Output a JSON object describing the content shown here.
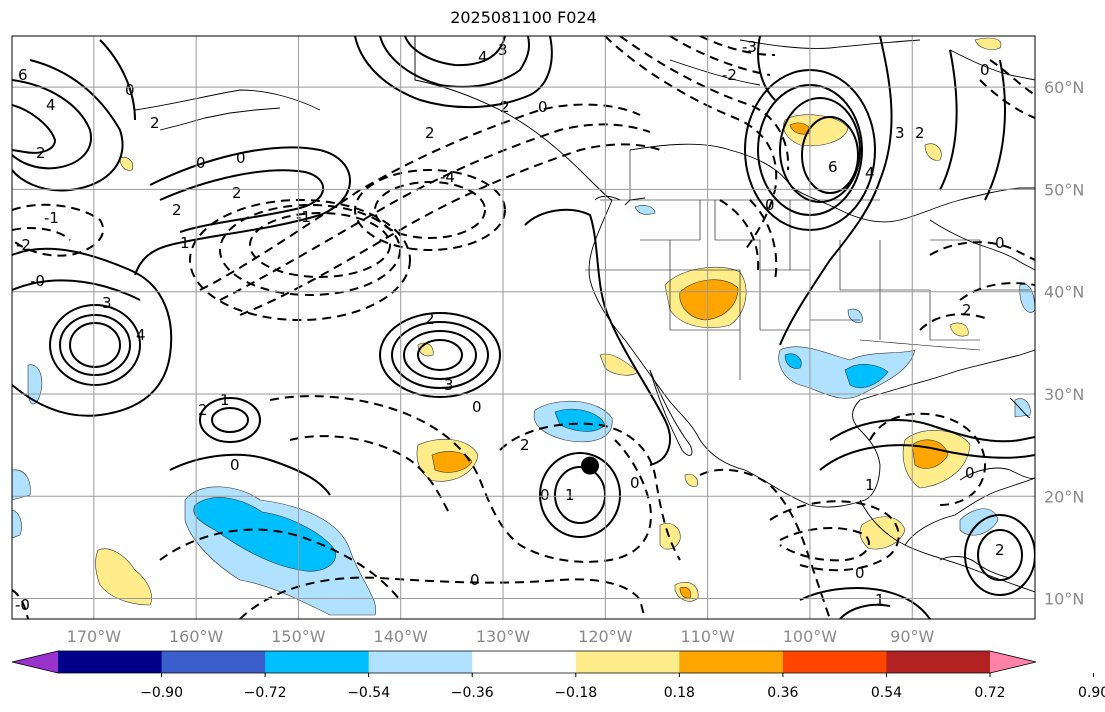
{
  "title": "2025081100 F024",
  "map": {
    "lon_range": [
      -178,
      -78
    ],
    "lat_range": [
      8,
      65
    ],
    "lon_ticks": [
      {
        "value": -170,
        "label": "170°W"
      },
      {
        "value": -160,
        "label": "160°W"
      },
      {
        "value": -150,
        "label": "150°W"
      },
      {
        "value": -140,
        "label": "140°W"
      },
      {
        "value": -130,
        "label": "130°W"
      },
      {
        "value": -120,
        "label": "120°W"
      },
      {
        "value": -110,
        "label": "110°W"
      },
      {
        "value": -100,
        "label": "100°W"
      },
      {
        "value": -90,
        "label": "90°W"
      }
    ],
    "lat_ticks": [
      {
        "value": 60,
        "label": "60°N"
      },
      {
        "value": 50,
        "label": "50°N"
      },
      {
        "value": 40,
        "label": "40°N"
      },
      {
        "value": 30,
        "label": "30°N"
      },
      {
        "value": 20,
        "label": "20°N"
      },
      {
        "value": 10,
        "label": "10°N"
      }
    ],
    "marker": {
      "lon": -121.5,
      "lat": 23.0,
      "color": "#000000"
    },
    "grid": true
  },
  "colorbar": {
    "colors": [
      "#9932cc",
      "#00008b",
      "#3a5fcd",
      "#00bfff",
      "#b0e2ff",
      "#ffffff",
      "#ffec8b",
      "#ffa500",
      "#ff4500",
      "#b22222",
      "#ff82ab"
    ],
    "labels": [
      "−0.90",
      "−0.72",
      "−0.54",
      "−0.36",
      "−0.18",
      "0.18",
      "0.36",
      "0.54",
      "0.72",
      "0.90"
    ]
  },
  "contour_labels": [
    "0",
    "1",
    "2",
    "3",
    "4",
    "-1",
    "-2",
    "-3",
    "-4"
  ]
}
